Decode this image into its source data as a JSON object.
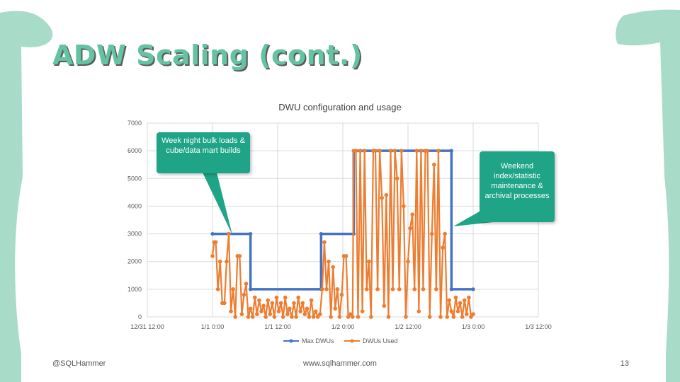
{
  "slide": {
    "title": "ADW Scaling (cont.)",
    "footer_left": "@SQLHammer",
    "footer_center": "www.sqlhammer.com",
    "page_number": "13"
  },
  "theme": {
    "accent": "#a9dcc8",
    "title_color": "#63c3a2",
    "callout_color": "#1fa487"
  },
  "annotations": {
    "left": "Week night bulk loads & cube/data mart builds",
    "right": "Weekend index/statistic maintenance & archival processes"
  },
  "chart_data": {
    "type": "line",
    "title": "DWU configuration and usage",
    "xlabel": "",
    "ylabel": "",
    "xlim_hours": [
      0,
      72
    ],
    "ylim": [
      0,
      7000
    ],
    "x_ticks": [
      "12/31 12:00",
      "1/1 0:00",
      "1/1 12:00",
      "1/2 0:00",
      "1/2 12:00",
      "1/3 0:00",
      "1/3 12:00"
    ],
    "y_ticks": [
      "0",
      "1000",
      "2000",
      "3000",
      "4000",
      "5000",
      "6000",
      "7000"
    ],
    "grid": true,
    "legend_position": "bottom",
    "series": [
      {
        "name": "Max DWUs",
        "color": "#4472c4",
        "points": [
          [
            12,
            3000
          ],
          [
            19,
            3000
          ],
          [
            19,
            1000
          ],
          [
            32,
            1000
          ],
          [
            32,
            3000
          ],
          [
            38,
            3000
          ],
          [
            38,
            6000
          ],
          [
            56,
            6000
          ],
          [
            56,
            1000
          ],
          [
            60,
            1000
          ]
        ]
      },
      {
        "name": "DWUs Used",
        "color": "#ed7d31",
        "points": [
          [
            12,
            2200
          ],
          [
            12.3,
            2700
          ],
          [
            12.6,
            2700
          ],
          [
            13,
            1000
          ],
          [
            13.4,
            2000
          ],
          [
            13.8,
            500
          ],
          [
            14.2,
            500
          ],
          [
            14.6,
            2000
          ],
          [
            15,
            3000
          ],
          [
            15.4,
            200
          ],
          [
            15.8,
            1000
          ],
          [
            16.2,
            0
          ],
          [
            16.6,
            2200
          ],
          [
            17,
            2200
          ],
          [
            17.4,
            100
          ],
          [
            17.8,
            800
          ],
          [
            18.2,
            1200
          ],
          [
            18.6,
            0
          ],
          [
            19,
            300
          ],
          [
            19.4,
            0
          ],
          [
            19.8,
            700
          ],
          [
            20.2,
            100
          ],
          [
            20.6,
            600
          ],
          [
            21,
            200
          ],
          [
            21.4,
            400
          ],
          [
            21.8,
            0
          ],
          [
            22.2,
            600
          ],
          [
            22.6,
            100
          ],
          [
            23,
            500
          ],
          [
            23.4,
            0
          ],
          [
            23.8,
            700
          ],
          [
            24.2,
            200
          ],
          [
            24.6,
            500
          ],
          [
            25,
            0
          ],
          [
            25.4,
            700
          ],
          [
            25.8,
            100
          ],
          [
            26.2,
            300
          ],
          [
            26.6,
            0
          ],
          [
            27,
            500
          ],
          [
            27.4,
            0
          ],
          [
            27.8,
            700
          ],
          [
            28.2,
            200
          ],
          [
            28.6,
            500
          ],
          [
            29,
            100
          ],
          [
            29.4,
            300
          ],
          [
            29.8,
            0
          ],
          [
            30.2,
            600
          ],
          [
            30.6,
            0
          ],
          [
            31,
            200
          ],
          [
            31.4,
            0
          ],
          [
            31.8,
            100
          ],
          [
            32.2,
            1000
          ],
          [
            32.6,
            2700
          ],
          [
            33,
            1000
          ],
          [
            33.4,
            2000
          ],
          [
            33.8,
            0
          ],
          [
            34.2,
            1800
          ],
          [
            34.6,
            300
          ],
          [
            35,
            1000
          ],
          [
            35.4,
            0
          ],
          [
            35.8,
            800
          ],
          [
            36.2,
            2200
          ],
          [
            36.6,
            2200
          ],
          [
            37,
            0
          ],
          [
            37.4,
            100
          ],
          [
            37.8,
            0
          ],
          [
            38,
            6000
          ],
          [
            38.4,
            6000
          ],
          [
            38.8,
            0
          ],
          [
            39.2,
            6000
          ],
          [
            39.6,
            200
          ],
          [
            40,
            6000
          ],
          [
            40.4,
            1000
          ],
          [
            40.8,
            2000
          ],
          [
            41.2,
            0
          ],
          [
            41.6,
            6000
          ],
          [
            42,
            6000
          ],
          [
            42.4,
            1000
          ],
          [
            42.8,
            6000
          ],
          [
            43.2,
            4300
          ],
          [
            43.6,
            400
          ],
          [
            44,
            4400
          ],
          [
            44.4,
            0
          ],
          [
            44.8,
            6000
          ],
          [
            45.2,
            1000
          ],
          [
            45.6,
            6000
          ],
          [
            46,
            5000
          ],
          [
            46.4,
            1000
          ],
          [
            46.8,
            6000
          ],
          [
            47.2,
            4000
          ],
          [
            47.6,
            0
          ],
          [
            48,
            2000
          ],
          [
            48.4,
            3200
          ],
          [
            48.8,
            3700
          ],
          [
            49.2,
            1000
          ],
          [
            49.6,
            6000
          ],
          [
            50,
            200
          ],
          [
            50.4,
            6000
          ],
          [
            50.8,
            1000
          ],
          [
            51.2,
            6000
          ],
          [
            51.6,
            6000
          ],
          [
            52,
            0
          ],
          [
            52.4,
            3000
          ],
          [
            52.8,
            5500
          ],
          [
            53.2,
            1000
          ],
          [
            53.6,
            6000
          ],
          [
            54,
            0
          ],
          [
            54.4,
            2500
          ],
          [
            54.8,
            3000
          ],
          [
            55.2,
            0
          ],
          [
            55.6,
            600
          ],
          [
            56,
            200
          ],
          [
            56.4,
            0
          ],
          [
            56.8,
            700
          ],
          [
            57.2,
            200
          ],
          [
            57.6,
            500
          ],
          [
            58,
            0
          ],
          [
            58.4,
            600
          ],
          [
            58.8,
            100
          ],
          [
            59.2,
            700
          ],
          [
            59.6,
            0
          ],
          [
            60,
            100
          ]
        ]
      }
    ]
  }
}
